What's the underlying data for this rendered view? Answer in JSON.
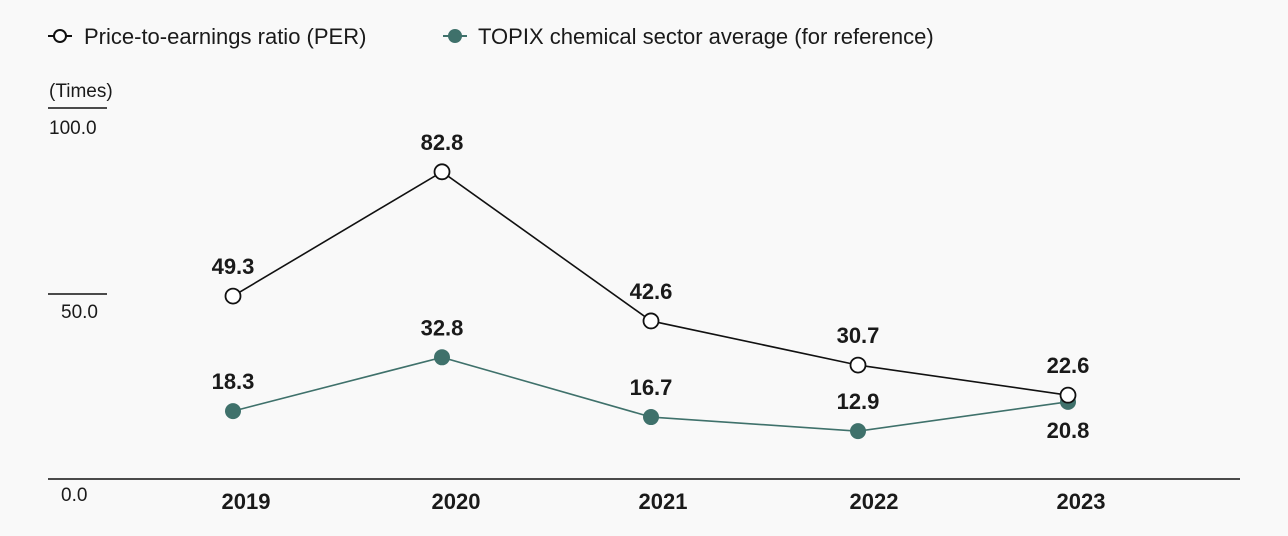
{
  "chart_data": {
    "type": "line",
    "title": "",
    "unit_label": "(Times)",
    "categories": [
      "2019",
      "2020",
      "2021",
      "2022",
      "2023"
    ],
    "ylim": [
      0,
      100
    ],
    "yticks": [
      "0.0",
      "50.0",
      "100.0"
    ],
    "yticks_values": [
      0,
      50,
      100
    ],
    "legend_position": "top-left",
    "series": [
      {
        "name": "Price-to-earnings ratio (PER)",
        "marker": "hollow-circle",
        "color": "#111111",
        "values": [
          49.3,
          82.8,
          42.6,
          30.7,
          22.6
        ],
        "labels": [
          "49.3",
          "82.8",
          "42.6",
          "30.7",
          "22.6"
        ]
      },
      {
        "name": "TOPIX chemical sector average (for reference)",
        "marker": "filled-circle",
        "color": "#3f716b",
        "values": [
          18.3,
          32.8,
          16.7,
          12.9,
          20.8
        ],
        "labels": [
          "18.3",
          "32.8",
          "16.7",
          "12.9",
          "20.8"
        ]
      }
    ]
  }
}
